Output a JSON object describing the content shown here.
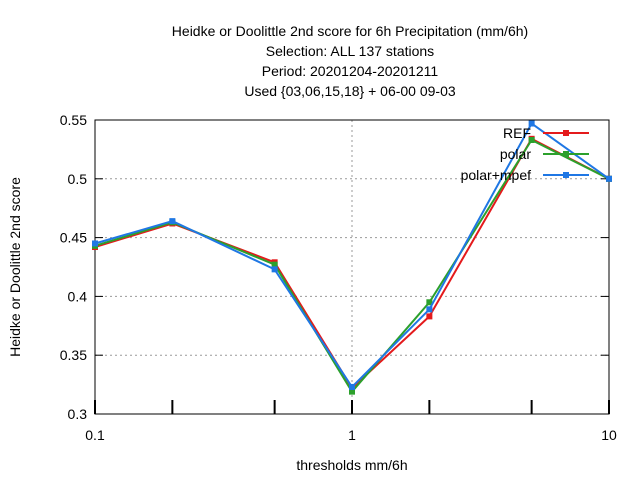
{
  "chart_data": {
    "type": "line",
    "title_lines": [
      "Heidke or Doolittle 2nd score  for 6h Precipitation (mm/6h)",
      "Selection: ALL    137 stations",
      "Period: 20201204-20201211",
      "Used {03,06,15,18} + 06-00 09-03"
    ],
    "xlabel": "thresholds mm/6h",
    "ylabel": "Heidke or Doolittle 2nd score",
    "xscale": "log",
    "xlim": [
      0.1,
      10
    ],
    "ylim": [
      0.3,
      0.55
    ],
    "x_ticks": [
      0.1,
      1,
      10
    ],
    "x_tick_labels": [
      "0.1",
      "1",
      "10"
    ],
    "x_minor_ticks": [
      0.2,
      0.5,
      2,
      5
    ],
    "y_ticks": [
      0.3,
      0.35,
      0.4,
      0.45,
      0.5,
      0.55
    ],
    "y_tick_labels": [
      "0.3",
      "0.35",
      "0.4",
      "0.45",
      "0.5",
      "0.55"
    ],
    "grid": true,
    "legend_position": "top-right",
    "x": [
      0.1,
      0.2,
      0.5,
      1,
      2,
      5,
      10
    ],
    "series": [
      {
        "name": "REF",
        "color": "#e41a1c",
        "values": [
          0.442,
          0.462,
          0.429,
          0.322,
          0.383,
          0.534,
          0.5
        ]
      },
      {
        "name": "polar",
        "color": "#2ca02c",
        "values": [
          0.443,
          0.463,
          0.427,
          0.319,
          0.395,
          0.533,
          0.5
        ]
      },
      {
        "name": "polar+mpef",
        "color": "#1f77e4",
        "values": [
          0.445,
          0.464,
          0.423,
          0.323,
          0.389,
          0.547,
          0.5
        ]
      }
    ]
  }
}
